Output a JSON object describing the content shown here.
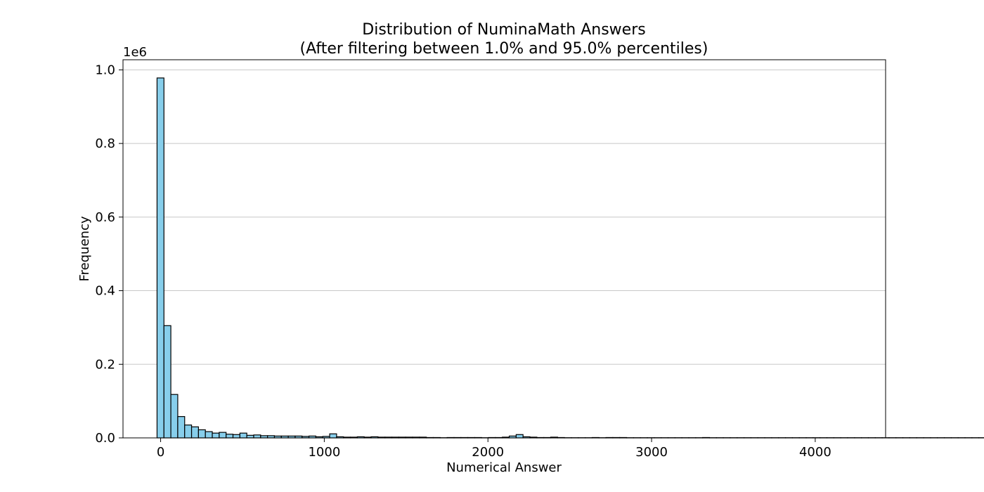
{
  "chart_data": {
    "type": "bar",
    "title": "Distribution of NuminaMath Answers",
    "subtitle": "(After filtering between 1.0% and 95.0% percentiles)",
    "xlabel": "Numerical Answer",
    "ylabel": "Frequency",
    "y_offset_text": "1e6",
    "xlim": [
      -230,
      4430
    ],
    "ylim": [
      0,
      1.0275
    ],
    "xticks": [
      0,
      1000,
      2000,
      3000,
      4000
    ],
    "xtick_labels": [
      "0",
      "1000",
      "2000",
      "3000",
      "4000"
    ],
    "yticks": [
      0,
      0.2,
      0.4,
      0.6,
      0.8,
      1.0
    ],
    "ytick_labels": [
      "0.0",
      "0.2",
      "0.4",
      "0.6",
      "0.8",
      "1.0"
    ],
    "grid": "y-axis major",
    "bar_color": "#87CEEB",
    "edge_color": "#000000",
    "grid_color": "#c8c8c8",
    "bin_start": -22,
    "bin_width": 42.2,
    "values": [
      0.978,
      0.305,
      0.118,
      0.058,
      0.035,
      0.03,
      0.022,
      0.017,
      0.013,
      0.015,
      0.01,
      0.009,
      0.013,
      0.007,
      0.008,
      0.006,
      0.006,
      0.005,
      0.005,
      0.005,
      0.005,
      0.004,
      0.005,
      0.003,
      0.004,
      0.011,
      0.003,
      0.002,
      0.002,
      0.003,
      0.002,
      0.003,
      0.002,
      0.002,
      0.002,
      0.002,
      0.002,
      0.002,
      0.002,
      0.001,
      0.001,
      0.0005,
      0.001,
      0.001,
      0.001,
      0.001,
      0.001,
      0.0005,
      0.001,
      0.001,
      0.002,
      0.005,
      0.009,
      0.003,
      0.002,
      0.001,
      0.001,
      0.002,
      0.001,
      0.0005,
      0.0005,
      0.0005,
      0.0005,
      0.001,
      0.0005,
      0.001,
      0.001,
      0.001,
      0.0005,
      0.0005,
      0.0005,
      0.0005,
      0.0005,
      0.0005,
      0.0005,
      0.0005,
      0.0005,
      0.0005,
      0.0005,
      0.001,
      0.0005,
      0.0005,
      0.0005,
      0.0005,
      0.0005,
      0.0005,
      0.0005,
      0.0005,
      0.0005,
      0.0005,
      0.0005,
      0.0005,
      0.0005,
      0.0005,
      0.0005,
      0.0005,
      0.0005,
      0.0005,
      0.0005,
      0.0005,
      0.0005,
      0.0005,
      0.0005,
      0.0005,
      0.0005,
      0.0005,
      0.0005,
      0.0005,
      0.0005,
      0.0005,
      0.0005,
      0.0005,
      0.0005,
      0.0005,
      0.0005,
      0.0005,
      0.0005,
      0.0005,
      0.0005,
      0.0005,
      0.0005,
      0.0005,
      0.0005,
      0.0005,
      0.0005,
      0.0005,
      0.0005,
      0.0005,
      0.0005,
      0.0005,
      0.0005,
      0.0005,
      0.0005,
      0.0005,
      0.0005,
      0.0005,
      0.0005,
      0.0005,
      0.0005,
      0.0005,
      0.0005,
      0.0005,
      0.0005,
      0.0005,
      0.0005,
      0.0005,
      0.0005,
      0.0005,
      0.0005,
      0.0005,
      0.0005,
      0.0005,
      0.0005,
      0.0005,
      0.0005,
      0.0005,
      0.0005,
      0.0005,
      0.0005,
      0.0005
    ]
  }
}
